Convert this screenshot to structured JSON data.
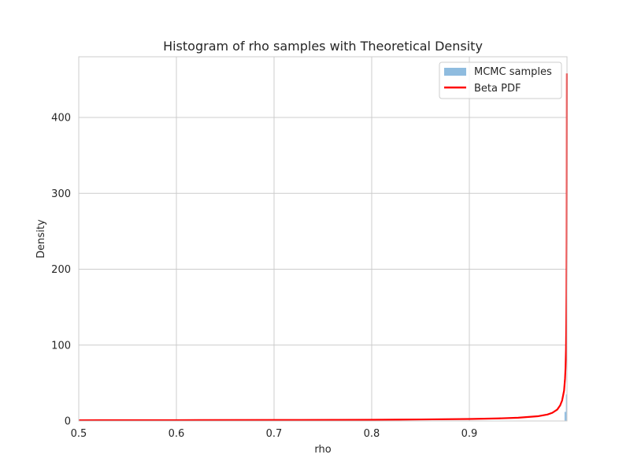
{
  "chart_data": {
    "type": "line",
    "title": "Histogram of rho samples with Theoretical Density",
    "xlabel": "rho",
    "ylabel": "Density",
    "xlim": [
      0.5,
      1.0
    ],
    "ylim": [
      0,
      480
    ],
    "xticks": [
      0.5,
      0.6,
      0.7,
      0.8,
      0.9
    ],
    "xtick_labels": [
      "0.5",
      "0.6",
      "0.7",
      "0.8",
      "0.9"
    ],
    "yticks": [
      0,
      100,
      200,
      300,
      400
    ],
    "ytick_labels": [
      "0",
      "100",
      "200",
      "300",
      "400"
    ],
    "grid": true,
    "legend_position": "top-right",
    "legend": [
      {
        "label": "MCMC samples",
        "kind": "patch",
        "color": "#8fbcdf"
      },
      {
        "label": "Beta PDF",
        "kind": "line",
        "color": "#ff0000"
      }
    ],
    "histogram": {
      "name": "MCMC samples",
      "color": "#8fbcdf",
      "bins": [
        {
          "x0": 0.9975,
          "x1": 0.9989,
          "value": 12
        },
        {
          "x0": 0.9989,
          "x1": 1.0,
          "value": 35
        }
      ]
    },
    "series": [
      {
        "name": "Beta PDF",
        "color": "#ff0000",
        "x": [
          0.5,
          0.6,
          0.7,
          0.8,
          0.85,
          0.9,
          0.93,
          0.95,
          0.97,
          0.98,
          0.985,
          0.99,
          0.993,
          0.995,
          0.997,
          0.998,
          0.9985,
          0.999,
          0.9993,
          0.9995,
          0.9997,
          0.9998,
          0.99985,
          0.9999
        ],
        "y": [
          1.0,
          1.1,
          1.3,
          1.6,
          2.0,
          2.6,
          3.4,
          4.3,
          6.2,
          8.5,
          10.8,
          15.0,
          20.5,
          27.0,
          40.0,
          56.0,
          70.0,
          95.0,
          128.0,
          165.0,
          240.0,
          320.0,
          380.0,
          458.0
        ]
      }
    ]
  }
}
